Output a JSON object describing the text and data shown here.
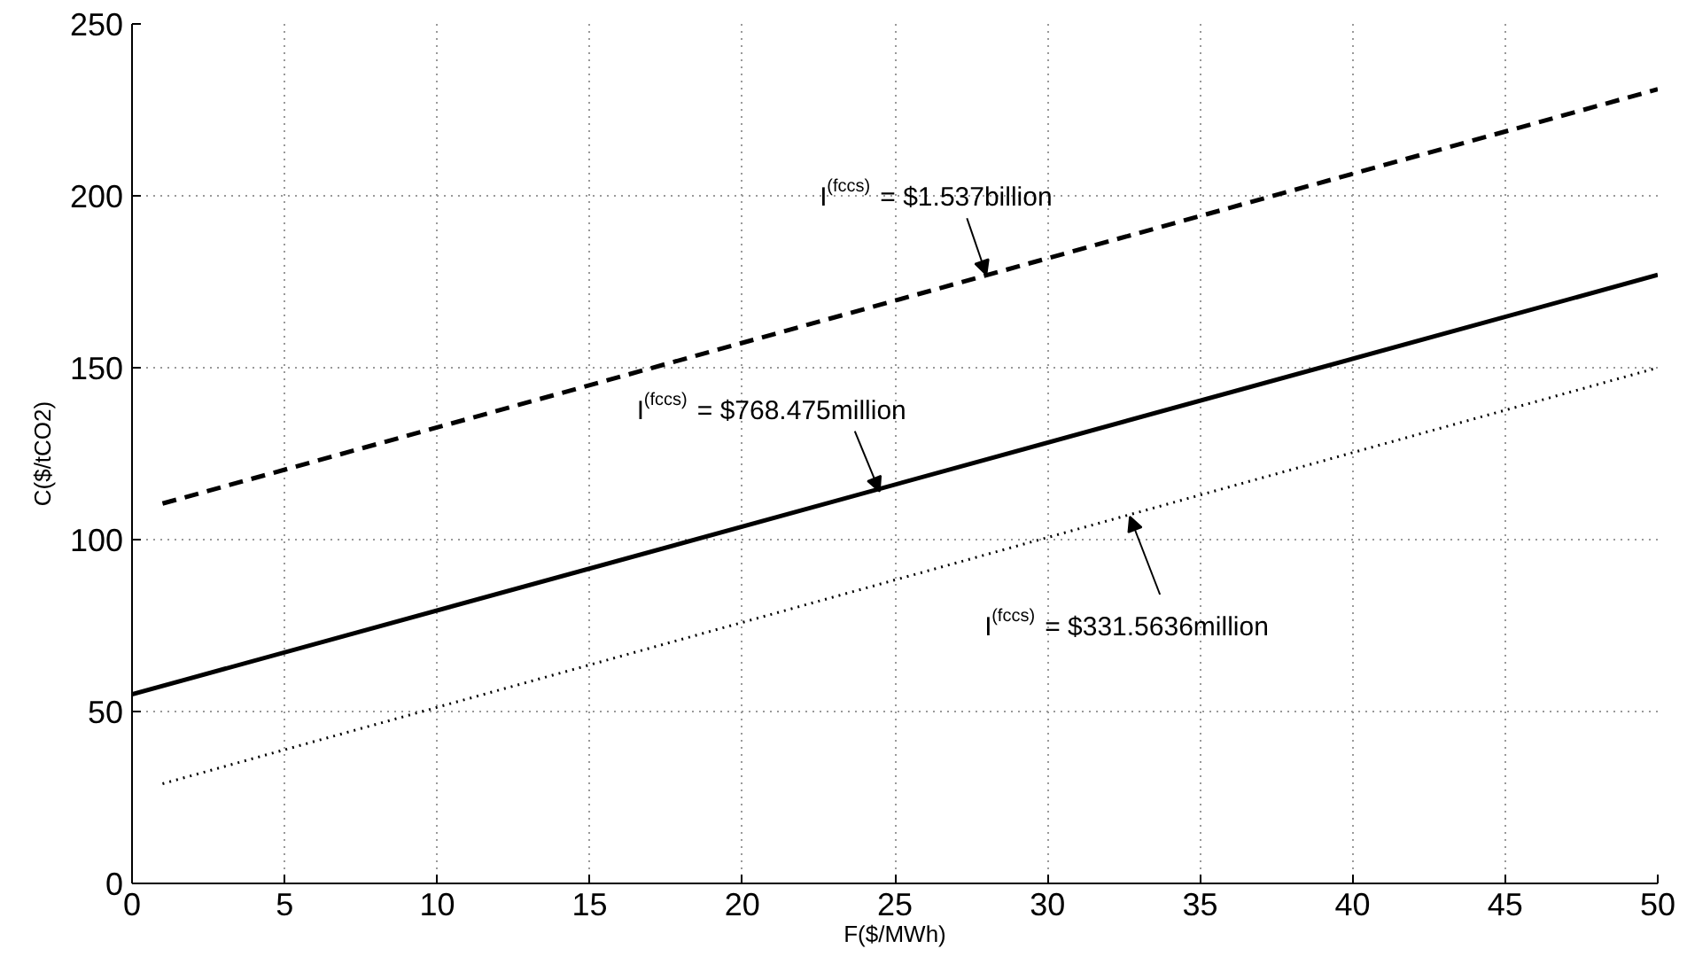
{
  "chart_data": {
    "type": "line",
    "xlabel": "F($/MWh)",
    "ylabel": "C($/tCO2)",
    "xlim": [
      0,
      50
    ],
    "ylim": [
      0,
      250
    ],
    "xticks": [
      0,
      5,
      10,
      15,
      20,
      25,
      30,
      35,
      40,
      45,
      50
    ],
    "yticks": [
      0,
      50,
      100,
      150,
      200,
      250
    ],
    "grid": true,
    "series": [
      {
        "color": "#000000",
        "line_style": "dashed",
        "x": [
          1,
          50
        ],
        "values": [
          110.5,
          231
        ]
      },
      {
        "color": "#000000",
        "line_style": "solid",
        "x": [
          0,
          50
        ],
        "values": [
          55,
          177
        ]
      },
      {
        "color": "#000000",
        "line_style": "dotted",
        "x": [
          1,
          50
        ],
        "values": [
          29,
          150
        ]
      }
    ],
    "annotations": [
      {
        "text": "I$^{(fccs)}$ = $1.537billion",
        "x": 28,
        "y": 177
      },
      {
        "text": "I$^{(fccs)}$ = $768.475million",
        "x": 24.5,
        "y": 114
      },
      {
        "text": "I$^{(fccs)}$ = $331.5636million",
        "x": 32.7,
        "y": 106.7
      }
    ]
  }
}
